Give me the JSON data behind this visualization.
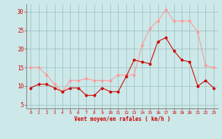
{
  "x": [
    0,
    1,
    2,
    3,
    4,
    5,
    6,
    7,
    8,
    9,
    10,
    11,
    12,
    13,
    14,
    15,
    16,
    17,
    18,
    19,
    20,
    21,
    22,
    23
  ],
  "vent_moyen": [
    9.5,
    10.5,
    10.5,
    9.5,
    8.5,
    9.5,
    9.5,
    7.5,
    7.5,
    9.5,
    8.5,
    8.5,
    12.5,
    17.0,
    16.5,
    16.0,
    22.0,
    23.0,
    19.5,
    17.0,
    16.5,
    10.0,
    11.5,
    9.5
  ],
  "rafales": [
    15.0,
    15.0,
    13.0,
    10.5,
    8.5,
    11.5,
    11.5,
    12.0,
    11.5,
    11.5,
    11.5,
    13.0,
    13.0,
    13.0,
    21.0,
    25.5,
    27.5,
    30.5,
    27.5,
    27.5,
    27.5,
    24.5,
    15.5,
    15.0
  ],
  "color_moyen": "#cc0000",
  "color_rafales": "#ff9999",
  "bg_color": "#cce8e8",
  "grid_color": "#99bbbb",
  "xlabel": "Vent moyen/en rafales ( km/h )",
  "xlabel_color": "#cc0000",
  "axis_color": "#888888",
  "ylabel_ticks": [
    5,
    10,
    15,
    20,
    25,
    30
  ],
  "xlim": [
    -0.5,
    23.5
  ],
  "ylim": [
    4,
    32
  ]
}
